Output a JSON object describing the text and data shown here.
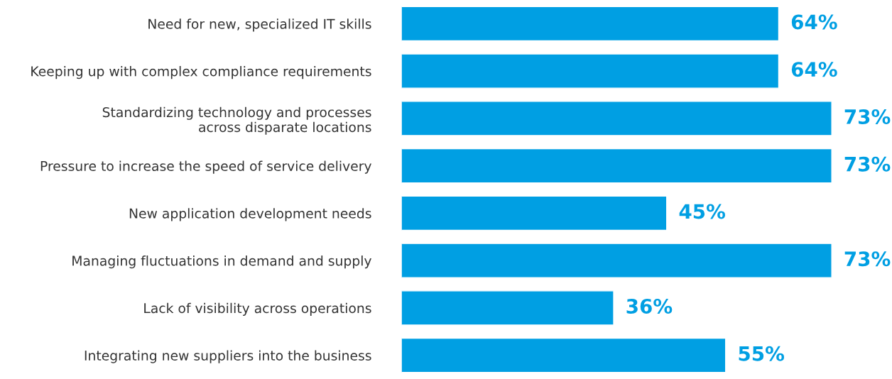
{
  "chart_data": {
    "type": "bar",
    "orientation": "horizontal",
    "categories": [
      "Need for new, specialized IT skills",
      "Keeping up with complex compliance requirements",
      "Standardizing technology and processes\nacross disparate locations",
      "Pressure to increase the speed of service delivery",
      "New application development needs",
      "Managing fluctuations in demand and supply",
      "Lack of visibility across operations",
      "Integrating new suppliers into the business"
    ],
    "values": [
      64,
      64,
      73,
      73,
      45,
      73,
      36,
      55
    ],
    "value_labels": [
      "64%",
      "64%",
      "73%",
      "73%",
      "45%",
      "73%",
      "36%",
      "55%"
    ],
    "color": "#009fe3",
    "grid": false,
    "legend": false
  }
}
